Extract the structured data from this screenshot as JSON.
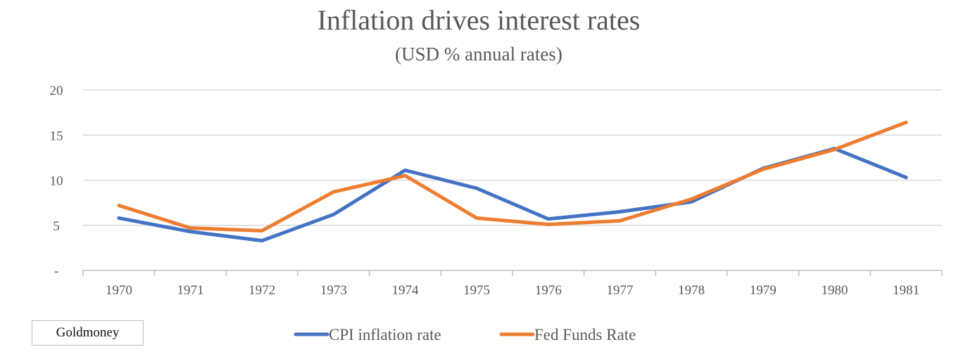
{
  "chart_data": {
    "type": "line",
    "title": "Inflation drives interest rates",
    "subtitle": "(USD % annual rates)",
    "xlabel": "",
    "ylabel": "",
    "categories": [
      "1970",
      "1971",
      "1972",
      "1973",
      "1974",
      "1975",
      "1976",
      "1977",
      "1978",
      "1979",
      "1980",
      "1981"
    ],
    "ylim": [
      0,
      20
    ],
    "yticks": [
      0,
      5,
      10,
      15,
      20
    ],
    "ytick_labels": [
      "-",
      "5",
      "10",
      "15",
      "20"
    ],
    "grid": true,
    "legend_position": "bottom",
    "series": [
      {
        "name": "CPI inflation rate",
        "color": "#4472c4",
        "values": [
          5.8,
          4.3,
          3.3,
          6.2,
          11.1,
          9.1,
          5.7,
          6.5,
          7.6,
          11.3,
          13.5,
          10.3
        ]
      },
      {
        "name": "Fed Funds Rate",
        "color": "#ed7d31",
        "values": [
          7.2,
          4.7,
          4.4,
          8.7,
          10.5,
          5.8,
          5.1,
          5.5,
          7.9,
          11.2,
          13.4,
          16.4
        ]
      }
    ]
  },
  "source_label": "Goldmoney"
}
